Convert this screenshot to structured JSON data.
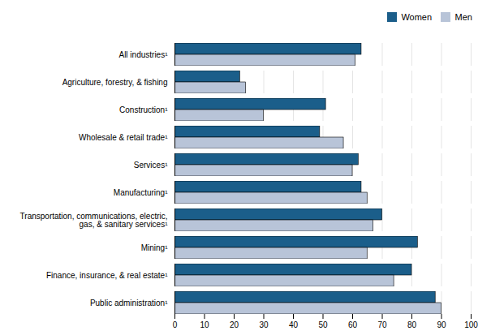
{
  "chart_data": {
    "type": "bar",
    "orientation": "horizontal",
    "categories": [
      "Public administration¹",
      "Finance, insurance, & real estate¹",
      "Mining¹",
      "Transportation, communications, electric,\ngas, & sanitary services¹",
      "Manufacturing¹",
      "Services¹",
      "Wholesale & retail trade¹",
      "Construction¹",
      "Agriculture, forestry, & fishing",
      "All industries¹"
    ],
    "series": [
      {
        "name": "Women",
        "color": "#1b5e8a",
        "values": [
          88,
          80,
          82,
          70,
          63,
          62,
          49,
          51,
          22,
          63
        ]
      },
      {
        "name": "Men",
        "color": "#b8c4d8",
        "values": [
          90,
          74,
          65,
          67,
          65,
          60,
          57,
          30,
          24,
          61
        ]
      }
    ],
    "xlim": [
      0,
      100
    ],
    "xticks": [
      0,
      10,
      20,
      30,
      40,
      50,
      60,
      70,
      80,
      90,
      100
    ],
    "grid": true,
    "legend": "upper right"
  }
}
